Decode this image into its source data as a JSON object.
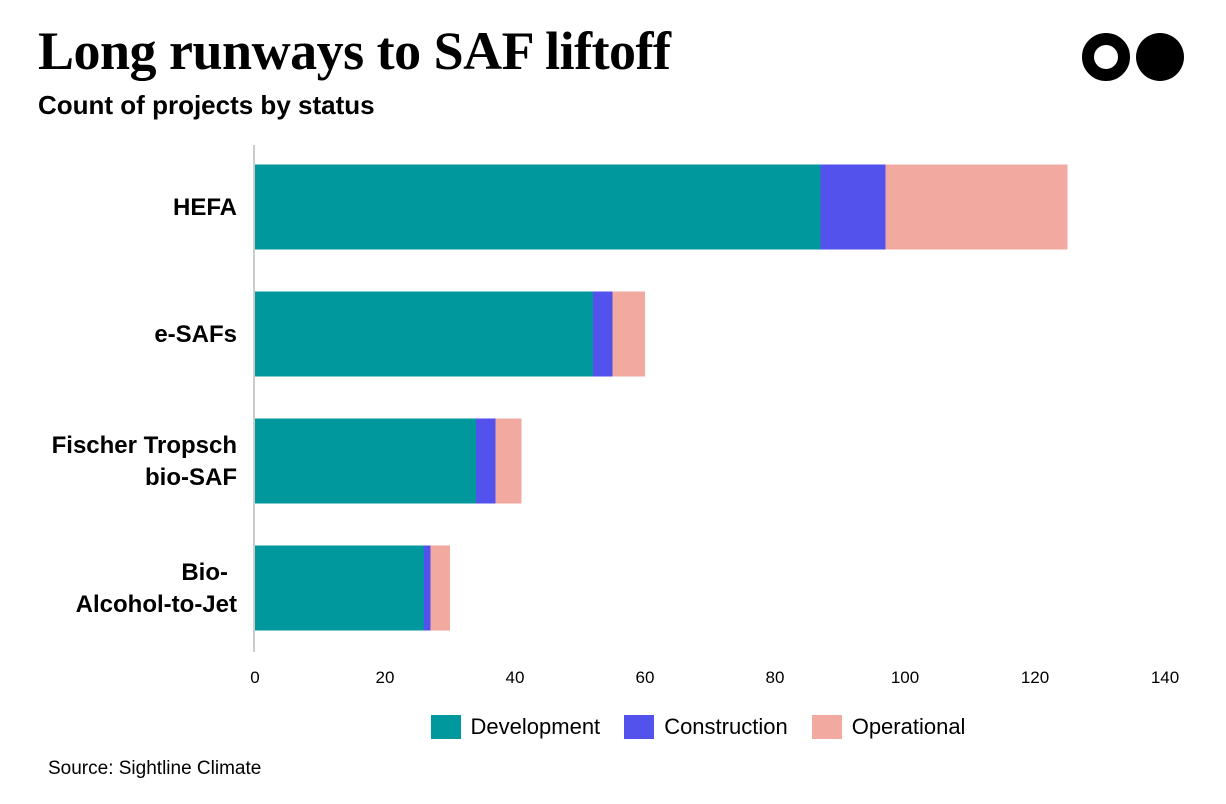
{
  "header": {
    "title": "Long runways to SAF liftoff",
    "subtitle": "Count of projects by status"
  },
  "logo": {
    "icon": "two-dots-logo-icon"
  },
  "footer": {
    "source": "Source: Sightline Climate"
  },
  "chart_data": {
    "type": "bar",
    "orientation": "horizontal",
    "stacked": true,
    "title": "Long runways to SAF liftoff",
    "subtitle": "Count of projects by status",
    "categories": [
      [
        "HEFA"
      ],
      [
        "e-SAFs"
      ],
      [
        "Fischer Tropsch",
        "bio-SAF"
      ],
      [
        "Bio-",
        "Alcohol-to-Jet"
      ]
    ],
    "series": [
      {
        "name": "Development",
        "color": "#00979D",
        "values": [
          87,
          52,
          34,
          26
        ]
      },
      {
        "name": "Construction",
        "color": "#5352ED",
        "values": [
          10,
          3,
          3,
          1
        ]
      },
      {
        "name": "Operational",
        "color": "#F2A9A0",
        "values": [
          28,
          5,
          4,
          3
        ]
      }
    ],
    "xlim": [
      0,
      140
    ],
    "xticks": [
      "0",
      "20",
      "40",
      "60",
      "80",
      "100",
      "120",
      "140"
    ],
    "grid": false,
    "legend_position": "bottom"
  }
}
